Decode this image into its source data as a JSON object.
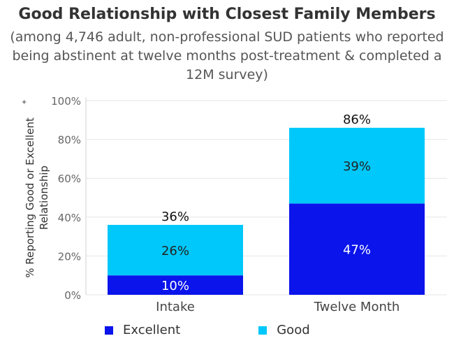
{
  "chart_data": {
    "type": "bar",
    "stacked": true,
    "title": "Good Relationship with Closest Family Members",
    "subtitle": "(among 4,746 adult, non-professional SUD patients who reported being abstinent at twelve months post-treatment & completed a 12M survey)",
    "subtitle_lines": [
      "(among 4,746 adult, non-professional SUD patients who reported",
      "being abstinent at twelve months post-treatment & completed a",
      "12M survey)"
    ],
    "ylabel": "% Reporting Good or Excellent Relationship",
    "ylabel_lines": [
      "% Reporting Good or Excellent",
      "Relationship"
    ],
    "xlabel": "",
    "categories": [
      "Intake",
      "Twelve Month"
    ],
    "ylim": [
      0,
      100
    ],
    "yticks": [
      0,
      20,
      40,
      60,
      80,
      100
    ],
    "ytick_labels": [
      "0%",
      "20%",
      "40%",
      "60%",
      "80%",
      "100%"
    ],
    "series": [
      {
        "name": "Excellent",
        "values": [
          10,
          47
        ],
        "labels": [
          "10%",
          "47%"
        ],
        "color": "#0A14EB"
      },
      {
        "name": "Good",
        "values": [
          26,
          39
        ],
        "labels": [
          "26%",
          "39%"
        ],
        "color": "#00C8FA"
      }
    ],
    "totals": [
      36,
      86
    ],
    "total_labels": [
      "36%",
      "86%"
    ],
    "legend_position": "bottom",
    "grid": true
  }
}
